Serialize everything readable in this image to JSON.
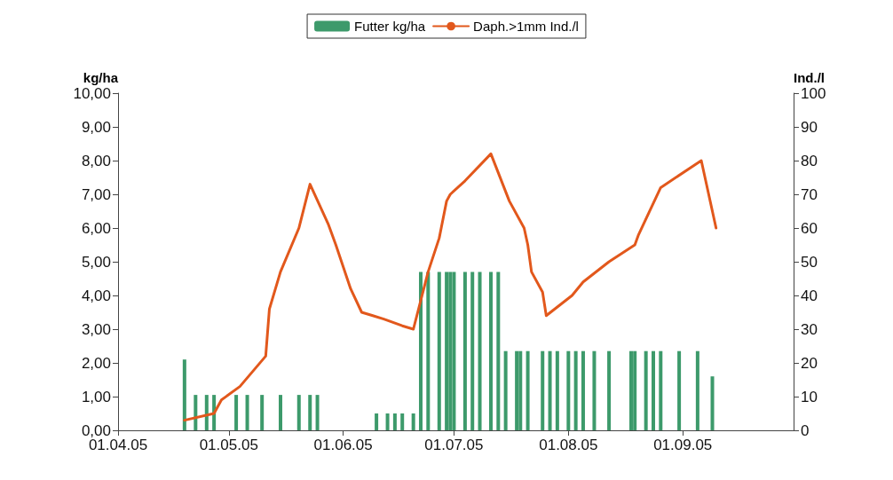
{
  "chart_data": {
    "type": "bar",
    "xlim": [
      "2005-04-01",
      "2005-10-01"
    ],
    "xticks": [
      {
        "value": "2005-04-01",
        "label": "01.04.05"
      },
      {
        "value": "2005-05-01",
        "label": "01.05.05"
      },
      {
        "value": "2005-06-01",
        "label": "01.06.05"
      },
      {
        "value": "2005-07-01",
        "label": "01.07.05"
      },
      {
        "value": "2005-08-01",
        "label": "01.08.05"
      },
      {
        "value": "2005-09-01",
        "label": "01.09.05"
      }
    ],
    "ylabel": "kg/ha",
    "y2label": "Ind./l",
    "ylim": [
      0,
      10
    ],
    "yticks": [
      {
        "value": 0,
        "label": "0,00"
      },
      {
        "value": 1,
        "label": "1,00"
      },
      {
        "value": 2,
        "label": "2,00"
      },
      {
        "value": 3,
        "label": "3,00"
      },
      {
        "value": 4,
        "label": "4,00"
      },
      {
        "value": 5,
        "label": "5,00"
      },
      {
        "value": 6,
        "label": "6,00"
      },
      {
        "value": 7,
        "label": "7,00"
      },
      {
        "value": 8,
        "label": "8,00"
      },
      {
        "value": 9,
        "label": "9,00"
      },
      {
        "value": 10,
        "label": "10,00"
      }
    ],
    "y2lim": [
      0,
      100
    ],
    "y2ticks": [
      0,
      10,
      20,
      30,
      40,
      50,
      60,
      70,
      80,
      90,
      100
    ],
    "legend": "top",
    "grid": false,
    "marker": "none",
    "line_style": "solid",
    "series": [
      {
        "name": "Futter kg/ha",
        "color": "#3d9a6b",
        "x": [
          "2005-04-19",
          "2005-04-22",
          "2005-04-25",
          "2005-04-27",
          "2005-05-03",
          "2005-05-06",
          "2005-05-10",
          "2005-05-15",
          "2005-05-20",
          "2005-05-23",
          "2005-05-25",
          "2005-06-10",
          "2005-06-13",
          "2005-06-15",
          "2005-06-17",
          "2005-06-20",
          "2005-06-22",
          "2005-06-24",
          "2005-06-27",
          "2005-06-29",
          "2005-06-30",
          "2005-07-01",
          "2005-07-04",
          "2005-07-06",
          "2005-07-08",
          "2005-07-11",
          "2005-07-13",
          "2005-07-15",
          "2005-07-18",
          "2005-07-19",
          "2005-07-21",
          "2005-07-25",
          "2005-07-27",
          "2005-07-29",
          "2005-08-01",
          "2005-08-03",
          "2005-08-05",
          "2005-08-08",
          "2005-08-12",
          "2005-08-18",
          "2005-08-19",
          "2005-08-22",
          "2005-08-24",
          "2005-08-26",
          "2005-08-31",
          "2005-09-05",
          "2005-09-09"
        ],
        "values": [
          2.1,
          1.05,
          1.05,
          1.05,
          1.05,
          1.05,
          1.05,
          1.05,
          1.05,
          1.05,
          1.05,
          0.5,
          0.5,
          0.5,
          0.5,
          0.5,
          4.7,
          4.7,
          4.7,
          4.7,
          4.7,
          4.7,
          4.7,
          4.7,
          4.7,
          4.7,
          4.7,
          2.35,
          2.35,
          2.35,
          2.35,
          2.35,
          2.35,
          2.35,
          2.35,
          2.35,
          2.35,
          2.35,
          2.35,
          2.35,
          2.35,
          2.35,
          2.35,
          2.35,
          2.35,
          2.35,
          1.6
        ]
      },
      {
        "name": "Daph.>1mm Ind./l",
        "type": "line",
        "axis": "y2",
        "color": "#e2581c",
        "x": [
          "2005-04-19",
          "2005-04-27",
          "2005-04-29",
          "2005-05-04",
          "2005-05-11",
          "2005-05-12",
          "2005-05-15",
          "2005-05-20",
          "2005-05-23",
          "2005-05-28",
          "2005-05-30",
          "2005-06-03",
          "2005-06-06",
          "2005-06-09",
          "2005-06-12",
          "2005-06-17",
          "2005-06-20",
          "2005-06-24",
          "2005-06-27",
          "2005-06-29",
          "2005-06-30",
          "2005-07-04",
          "2005-07-11",
          "2005-07-16",
          "2005-07-20",
          "2005-07-21",
          "2005-07-22",
          "2005-07-25",
          "2005-07-26",
          "2005-08-02",
          "2005-08-05",
          "2005-08-12",
          "2005-08-19",
          "2005-08-20",
          "2005-08-26",
          "2005-09-06",
          "2005-09-10"
        ],
        "values": [
          3,
          5,
          9,
          13,
          22,
          36,
          47,
          60,
          73,
          61,
          55,
          42,
          35,
          34,
          33,
          31,
          30,
          47,
          57,
          68,
          70,
          74,
          82,
          68,
          60,
          55,
          47,
          41,
          34,
          40,
          44,
          50,
          55,
          58,
          72,
          80,
          60
        ]
      }
    ]
  }
}
